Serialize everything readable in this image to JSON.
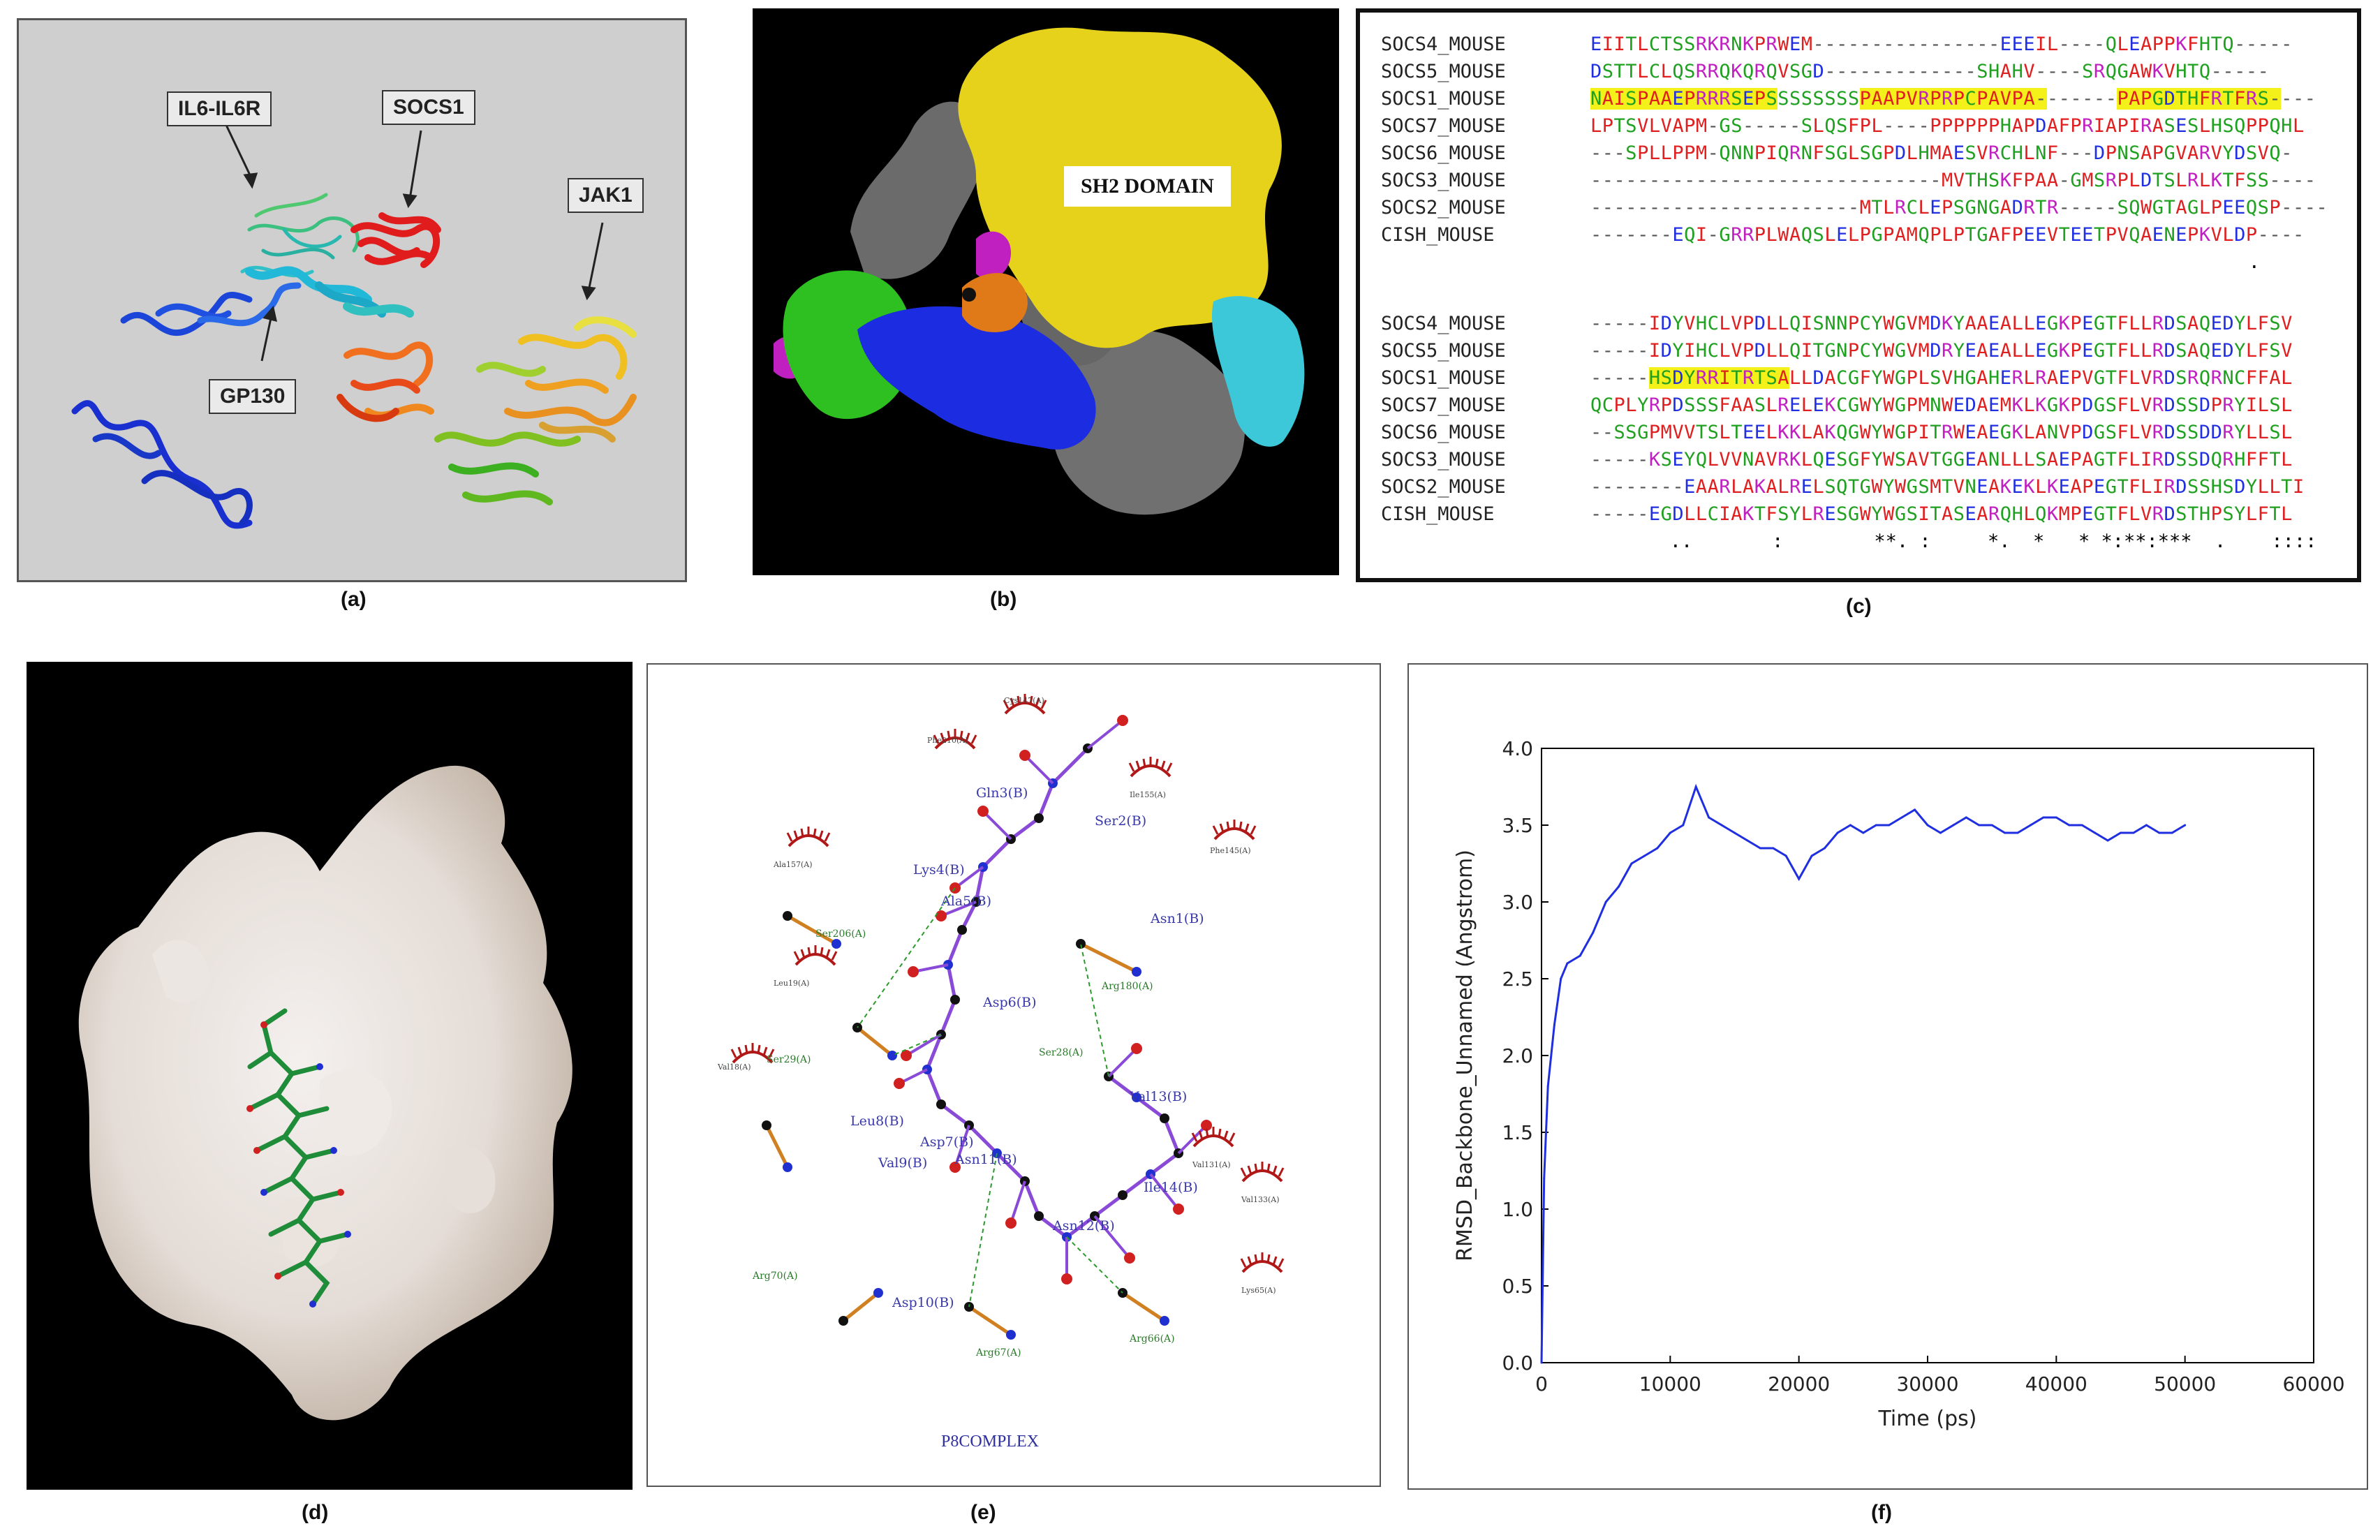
{
  "captions": {
    "a": "(a)",
    "b": "(b)",
    "c": "(c)",
    "d": "(d)",
    "e": "(e)",
    "f": "(f)"
  },
  "panel_a": {
    "labels": {
      "il6": "IL6-IL6R",
      "socs1": "SOCS1",
      "jak1": "JAK1",
      "gp130": "GP130"
    }
  },
  "panel_b": {
    "label": "SH2 DOMAIN"
  },
  "panel_c": {
    "block1": [
      {
        "name": "SOCS4_MOUSE",
        "seq": "EIITLCTSSRKRNKPRWEM----------------EEEIL----QLEAPPKFHTQ-----"
      },
      {
        "name": "SOCS5_MOUSE",
        "seq": "DSTTLCLQSRRQKQRQVSGD-------------SHAHV----SRQGAWKVHTQ-----"
      },
      {
        "name": "SOCS1_MOUSE",
        "seq": "NAISPAAEPRRRSEPSSSSSSSSPAAPVRPRPCPAVPA-------PAPGDTHFRTFRS----"
      },
      {
        "name": "SOCS7_MOUSE",
        "seq": "LPTSVLVAPM-GS-----SLQSFPL----PPPPPPHAPDAFPRIAPIRASESLHSQPPQHL"
      },
      {
        "name": "SOCS6_MOUSE",
        "seq": "---SPLLPPM-QNNPIQRNFSGLSGPDLHMAESVRCHLNF---DPNSAPGVARVYDSVQ-"
      },
      {
        "name": "SOCS3_MOUSE",
        "seq": "------------------------------MVTHSKFPAA-GMSRPLDTSLRLKTFSS----"
      },
      {
        "name": "SOCS2_MOUSE",
        "seq": "-----------------------MTLRCLEPSGNGADRTR-----SQWGTAGLPEEQSP----"
      },
      {
        "name": "CISH_MOUSE",
        "seq": "-------EQI-GRRPLWAQSLELPGPAMQPLPTGAFPEEVTEETPVQAENEPKVLDP----"
      }
    ],
    "block1_cons": "                                                          .",
    "block2": [
      {
        "name": "SOCS4_MOUSE",
        "seq": "-----IDYVHCLVPDLLQISNNPCYWGVMDKYAAEALLEGKPEGTFLLRDSAQEDYLFSV"
      },
      {
        "name": "SOCS5_MOUSE",
        "seq": "-----IDYIHCLVPDLLQITGNPCYWGVMDRYEAEALLEGKPEGTFLLRDSAQEDYLFSV"
      },
      {
        "name": "SOCS1_MOUSE",
        "seq": "-----HSDYRRITRTSALLDACGFYWGPLSVHGAHERLRAEPVGTFLVRDSRQRNCFFAL"
      },
      {
        "name": "SOCS7_MOUSE",
        "seq": "QCPLYRPDSSSFAASLRELEKCGWYWGPMNWEDAEMKLKGKPDGSFLVRDSSDPRYILSL"
      },
      {
        "name": "SOCS6_MOUSE",
        "seq": "--SSGPMVVTSLTEELKKLAKQGWYWGPITRWEAEGKLANVPDGSFLVRDSSDDRYLLSL"
      },
      {
        "name": "SOCS3_MOUSE",
        "seq": "-----KSEYQLVVNAVRKLQESGFYWSAVTGGEANLLLSAEPAGTFLIRDSSDQRHFFTL"
      },
      {
        "name": "SOCS2_MOUSE",
        "seq": "--------EAARLAKALRELSQTGWYWGSMTVNEAKEKLKEAPEGTFLIRDSSHSDYLLTI"
      },
      {
        "name": "CISH_MOUSE",
        "seq": "-----EGDLLCIAKTFSYLRESGWYWGSITASEARQHLQKMPEGTFLVRDSTHPSYLFTL"
      }
    ],
    "block2_cons": "       ..       :        **. :     *.  *   * *:**:***  .    ::::"
  },
  "panel_e": {
    "title": "P8COMPLEX",
    "ligand_labels": [
      "Gln3(B)",
      "Ser2(B)",
      "Lys4(B)",
      "Ala5(B)",
      "Asn1(B)",
      "Asp6(B)",
      "Leu8(B)",
      "Asp7(B)",
      "Val13(B)",
      "Val9(B)",
      "Asn11(B)",
      "Ile14(B)",
      "Asn12(B)",
      "Asp10(B)"
    ],
    "receptor_labels": [
      "Ser206(A)",
      "Arg180(A)",
      "Ser29(A)",
      "Ser28(A)",
      "Arg70(A)",
      "Arg67(A)",
      "Arg66(A)"
    ],
    "hydrophobic_labels": [
      "Cys147(A)",
      "Phe210(A)",
      "Ile155(A)",
      "Phe145(A)",
      "Ala157(A)",
      "Leu19(A)",
      "Val18(A)",
      "Val131(A)",
      "Val133(A)",
      "Lys65(A)"
    ]
  },
  "colors": {
    "blue_line": "#1f2fe0",
    "socs1_red": "#e02020",
    "sh2_yellow": "#e6d21a",
    "highlight": "#f4f01a",
    "gray_bg": "#cfcfcf"
  },
  "chart_data": {
    "type": "line",
    "title": "",
    "xlabel": "Time (ps)",
    "ylabel": "RMSD_Backbone_Unnamed (Angstrom)",
    "xlim": [
      0,
      60000
    ],
    "ylim": [
      0.0,
      4.0
    ],
    "xticks": [
      "0",
      "10000",
      "20000",
      "30000",
      "40000",
      "50000",
      "60000"
    ],
    "yticks": [
      "0.0",
      "0.5",
      "1.0",
      "1.5",
      "2.0",
      "2.5",
      "3.0",
      "3.5",
      "4.0"
    ],
    "grid": false,
    "series": [
      {
        "color": "#1f2fe0",
        "x": [
          0,
          200,
          500,
          1000,
          1500,
          2000,
          3000,
          4000,
          5000,
          6000,
          7000,
          8000,
          9000,
          10000,
          11000,
          12000,
          13000,
          14000,
          15000,
          16000,
          17000,
          18000,
          19000,
          20000,
          21000,
          22000,
          23000,
          24000,
          25000,
          26000,
          27000,
          28000,
          29000,
          30000,
          31000,
          32000,
          33000,
          34000,
          35000,
          36000,
          37000,
          38000,
          39000,
          40000,
          41000,
          42000,
          43000,
          44000,
          45000,
          46000,
          47000,
          48000,
          49000,
          50000
        ],
        "y": [
          0.0,
          1.2,
          1.8,
          2.2,
          2.5,
          2.6,
          2.65,
          2.8,
          3.0,
          3.1,
          3.25,
          3.3,
          3.35,
          3.45,
          3.5,
          3.75,
          3.55,
          3.5,
          3.45,
          3.4,
          3.35,
          3.35,
          3.3,
          3.15,
          3.3,
          3.35,
          3.45,
          3.5,
          3.45,
          3.5,
          3.5,
          3.55,
          3.6,
          3.5,
          3.45,
          3.5,
          3.55,
          3.5,
          3.5,
          3.45,
          3.45,
          3.5,
          3.55,
          3.55,
          3.5,
          3.5,
          3.45,
          3.4,
          3.45,
          3.45,
          3.5,
          3.45,
          3.45,
          3.5
        ]
      }
    ]
  }
}
